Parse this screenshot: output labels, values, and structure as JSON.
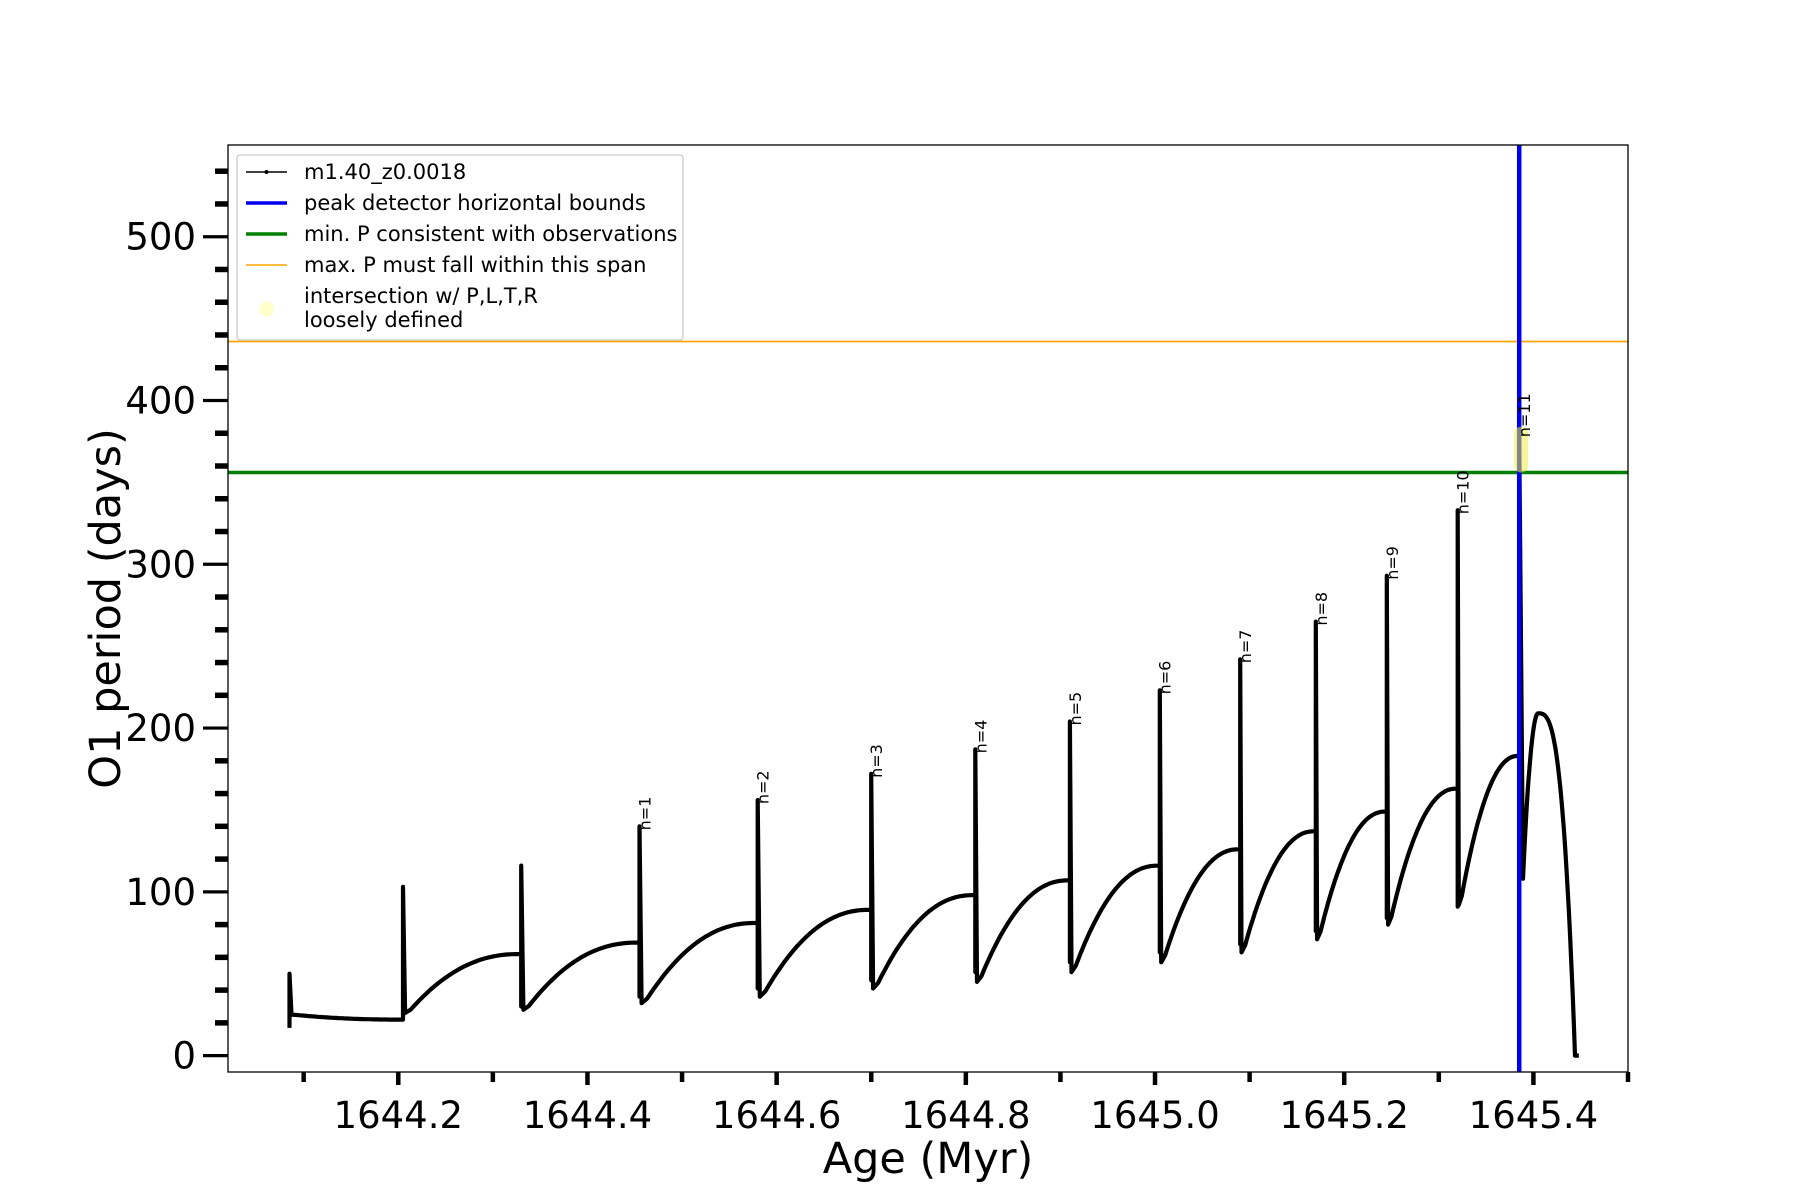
{
  "chart_data": {
    "type": "line",
    "xlabel": "Age (Myr)",
    "ylabel": "O1 period (days)",
    "xlim": [
      1644.02,
      1645.5
    ],
    "ylim": [
      -10,
      556
    ],
    "x_ticks": [
      1644.2,
      1644.4,
      1644.6,
      1644.8,
      1645.0,
      1645.2,
      1645.4
    ],
    "x_tick_labels": [
      "1644.2",
      "1644.4",
      "1644.6",
      "1644.8",
      "1645.0",
      "1645.2",
      "1645.4"
    ],
    "y_ticks": [
      0,
      100,
      200,
      300,
      400,
      500
    ],
    "y_tick_labels": [
      "0",
      "100",
      "200",
      "300",
      "400",
      "500"
    ],
    "series_color": "#000000",
    "pulses": [
      {
        "t": 1644.085,
        "trough": 22,
        "peak": 50,
        "pre_min": 17,
        "dip": 25,
        "label": ""
      },
      {
        "t": 1644.205,
        "trough": 62,
        "peak": 103,
        "pre_min": 27,
        "dip": 26,
        "label": ""
      },
      {
        "t": 1644.33,
        "trough": 69,
        "peak": 116,
        "pre_min": 30,
        "dip": 28,
        "label": ""
      },
      {
        "t": 1644.455,
        "trough": 81,
        "peak": 140,
        "pre_min": 36,
        "dip": 32,
        "label": "n=1"
      },
      {
        "t": 1644.58,
        "trough": 89,
        "peak": 156,
        "pre_min": 41,
        "dip": 36,
        "label": "n=2"
      },
      {
        "t": 1644.7,
        "trough": 98,
        "peak": 172,
        "pre_min": 46,
        "dip": 41,
        "label": "n=3"
      },
      {
        "t": 1644.81,
        "trough": 107,
        "peak": 187,
        "pre_min": 51,
        "dip": 45,
        "label": "n=4"
      },
      {
        "t": 1644.91,
        "trough": 116,
        "peak": 204,
        "pre_min": 57,
        "dip": 51,
        "label": "n=5"
      },
      {
        "t": 1645.005,
        "trough": 126,
        "peak": 223,
        "pre_min": 63,
        "dip": 57,
        "label": "n=6"
      },
      {
        "t": 1645.09,
        "trough": 137,
        "peak": 242,
        "pre_min": 68,
        "dip": 63,
        "label": "n=7"
      },
      {
        "t": 1645.17,
        "trough": 149,
        "peak": 265,
        "pre_min": 76,
        "dip": 71,
        "label": "n=8"
      },
      {
        "t": 1645.245,
        "trough": 163,
        "peak": 293,
        "pre_min": 84,
        "dip": 80,
        "label": "n=9"
      },
      {
        "t": 1645.32,
        "trough": 183,
        "peak": 333,
        "pre_min": 91,
        "dip": 92,
        "label": "n=10"
      },
      {
        "t": 1645.385,
        "trough": 210,
        "peak": 380,
        "pre_min": 108,
        "dip": 108,
        "label": "n=11"
      }
    ],
    "final_hump": {
      "t_start": 1645.385,
      "t_peak": 1645.405,
      "t_end": 1645.448,
      "peak": 209,
      "end_value": 0
    },
    "vertical_line": {
      "x": 1645.385,
      "color": "#0000ee"
    },
    "hlines": [
      {
        "y": 356,
        "color": "#008000"
      },
      {
        "y": 436,
        "color": "#ffa500"
      }
    ],
    "highlight": {
      "x": 1645.387,
      "y_min": 356,
      "y_max": 384,
      "color": "#eeee44"
    },
    "legend": {
      "location": "upper-left",
      "entries": [
        {
          "label": "m1.40_z0.0018",
          "color": "#000000",
          "kind": "line-marker"
        },
        {
          "label": "peak detector horizontal bounds",
          "color": "#0000ee",
          "kind": "thick-line"
        },
        {
          "label": "min. P consistent with observations",
          "color": "#008000",
          "kind": "thick-line"
        },
        {
          "label": "max. P must fall within this span",
          "color": "#ffa500",
          "kind": "thin-line"
        },
        {
          "label": "intersection w/ P,L,T,R",
          "label2": "loosely defined",
          "color": "#ffffcc",
          "kind": "dot"
        }
      ]
    }
  }
}
